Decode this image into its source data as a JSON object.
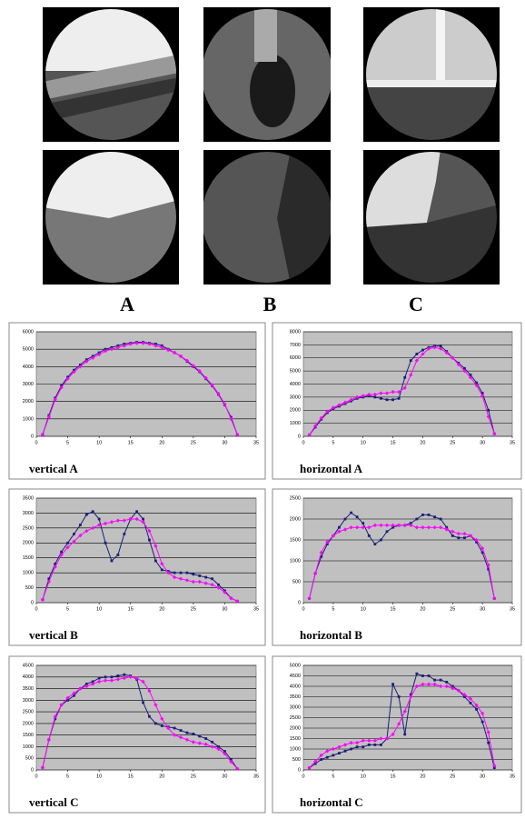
{
  "images": {
    "labels": [
      "A",
      "B",
      "C"
    ]
  },
  "chart_data": [
    {
      "type": "line",
      "title": "vertical A",
      "x": [
        1,
        2,
        3,
        4,
        5,
        6,
        7,
        8,
        9,
        10,
        11,
        12,
        13,
        14,
        15,
        16,
        17,
        18,
        19,
        20,
        21,
        22,
        23,
        24,
        25,
        26,
        27,
        28,
        29,
        30,
        31,
        32
      ],
      "series": [
        {
          "color": "#1c1c78",
          "values": [
            100,
            1200,
            2200,
            2900,
            3400,
            3800,
            4100,
            4400,
            4600,
            4800,
            5000,
            5100,
            5200,
            5300,
            5350,
            5400,
            5400,
            5350,
            5300,
            5200,
            5000,
            4800,
            4600,
            4300,
            4000,
            3700,
            3300,
            2900,
            2400,
            1800,
            1100,
            100
          ]
        },
        {
          "color": "#ff00ff",
          "values": [
            100,
            1100,
            2100,
            2800,
            3300,
            3700,
            4000,
            4300,
            4500,
            4700,
            4900,
            5000,
            5100,
            5200,
            5300,
            5350,
            5350,
            5300,
            5200,
            5100,
            4950,
            4800,
            4600,
            4350,
            4050,
            3750,
            3350,
            2950,
            2450,
            1850,
            1000,
            100
          ]
        }
      ],
      "xlim": [
        0,
        35
      ],
      "xticks": [
        0,
        5,
        10,
        15,
        20,
        25,
        30,
        35
      ],
      "ylim": [
        0,
        6000
      ],
      "yticks": [
        0,
        1000,
        2000,
        3000,
        4000,
        5000,
        6000
      ],
      "grid": true
    },
    {
      "type": "line",
      "title": "horizontal A",
      "x": [
        1,
        2,
        3,
        4,
        5,
        6,
        7,
        8,
        9,
        10,
        11,
        12,
        13,
        14,
        15,
        16,
        17,
        18,
        19,
        20,
        21,
        22,
        23,
        24,
        25,
        26,
        27,
        28,
        29,
        30,
        31,
        32
      ],
      "series": [
        {
          "color": "#1c1c78",
          "values": [
            100,
            700,
            1300,
            1800,
            2100,
            2300,
            2500,
            2700,
            2900,
            3000,
            3100,
            3000,
            2900,
            2800,
            2800,
            2900,
            4500,
            5800,
            6300,
            6600,
            6800,
            6900,
            6900,
            6500,
            6000,
            5600,
            5200,
            4700,
            4100,
            3300,
            2000,
            200
          ]
        },
        {
          "color": "#ff00ff",
          "values": [
            100,
            800,
            1400,
            1900,
            2200,
            2400,
            2600,
            2800,
            3000,
            3100,
            3200,
            3200,
            3300,
            3300,
            3400,
            3400,
            3700,
            4700,
            5800,
            6300,
            6700,
            6800,
            6700,
            6400,
            6000,
            5500,
            5000,
            4500,
            3900,
            3100,
            1500,
            200
          ]
        }
      ],
      "xlim": [
        0,
        35
      ],
      "xticks": [
        0,
        5,
        10,
        15,
        20,
        25,
        30,
        35
      ],
      "ylim": [
        0,
        8000
      ],
      "yticks": [
        0,
        1000,
        2000,
        3000,
        4000,
        5000,
        6000,
        7000,
        8000
      ],
      "grid": true
    },
    {
      "type": "line",
      "title": "vertical B",
      "x": [
        1,
        2,
        3,
        4,
        5,
        6,
        7,
        8,
        9,
        10,
        11,
        12,
        13,
        14,
        15,
        16,
        17,
        18,
        19,
        20,
        21,
        22,
        23,
        24,
        25,
        26,
        27,
        28,
        29,
        30,
        31,
        32
      ],
      "series": [
        {
          "color": "#1c1c78",
          "values": [
            100,
            800,
            1300,
            1700,
            2000,
            2300,
            2600,
            2950,
            3050,
            2800,
            2000,
            1400,
            1600,
            2300,
            2800,
            3050,
            2800,
            2100,
            1400,
            1100,
            1050,
            1000,
            1000,
            1000,
            950,
            900,
            850,
            800,
            600,
            400,
            150,
            50
          ]
        },
        {
          "color": "#ff00ff",
          "values": [
            100,
            700,
            1200,
            1600,
            1850,
            2050,
            2250,
            2400,
            2500,
            2600,
            2650,
            2700,
            2750,
            2750,
            2800,
            2800,
            2700,
            2400,
            1900,
            1300,
            1000,
            850,
            800,
            750,
            700,
            700,
            650,
            600,
            500,
            350,
            150,
            50
          ]
        }
      ],
      "xlim": [
        0,
        35
      ],
      "xticks": [
        0,
        5,
        10,
        15,
        20,
        25,
        30,
        35
      ],
      "ylim": [
        0,
        3500
      ],
      "yticks": [
        0,
        500,
        1000,
        1500,
        2000,
        2500,
        3000,
        3500
      ],
      "grid": true
    },
    {
      "type": "line",
      "title": "horizontal B",
      "x": [
        1,
        2,
        3,
        4,
        5,
        6,
        7,
        8,
        9,
        10,
        11,
        12,
        13,
        14,
        15,
        16,
        17,
        18,
        19,
        20,
        21,
        22,
        23,
        24,
        25,
        26,
        27,
        28,
        29,
        30,
        31,
        32
      ],
      "series": [
        {
          "color": "#1c1c78",
          "values": [
            100,
            700,
            1100,
            1400,
            1600,
            1800,
            2000,
            2150,
            2050,
            1900,
            1600,
            1400,
            1500,
            1700,
            1800,
            1850,
            1850,
            1900,
            2000,
            2100,
            2100,
            2050,
            2000,
            1800,
            1600,
            1550,
            1550,
            1600,
            1450,
            1200,
            800,
            100
          ]
        },
        {
          "color": "#ff00ff",
          "values": [
            100,
            700,
            1200,
            1450,
            1600,
            1700,
            1750,
            1800,
            1800,
            1800,
            1800,
            1850,
            1850,
            1850,
            1850,
            1850,
            1850,
            1850,
            1800,
            1800,
            1800,
            1800,
            1800,
            1750,
            1700,
            1650,
            1650,
            1600,
            1500,
            1300,
            900,
            100
          ]
        }
      ],
      "xlim": [
        0,
        35
      ],
      "xticks": [
        0,
        5,
        10,
        15,
        20,
        25,
        30,
        35
      ],
      "ylim": [
        0,
        2500
      ],
      "yticks": [
        0,
        500,
        1000,
        1500,
        2000,
        2500
      ],
      "grid": true
    },
    {
      "type": "line",
      "title": "vertical C",
      "x": [
        1,
        2,
        3,
        4,
        5,
        6,
        7,
        8,
        9,
        10,
        11,
        12,
        13,
        14,
        15,
        16,
        17,
        18,
        19,
        20,
        21,
        22,
        23,
        24,
        25,
        26,
        27,
        28,
        29,
        30,
        31,
        32
      ],
      "series": [
        {
          "color": "#1c1c78",
          "values": [
            100,
            1300,
            2200,
            2800,
            3000,
            3200,
            3500,
            3700,
            3800,
            3950,
            4000,
            4000,
            4050,
            4100,
            4050,
            3900,
            2900,
            2300,
            2000,
            1900,
            1850,
            1800,
            1700,
            1600,
            1550,
            1450,
            1350,
            1200,
            1000,
            800,
            450,
            50
          ]
        },
        {
          "color": "#ff00ff",
          "values": [
            100,
            1300,
            2300,
            2800,
            3100,
            3300,
            3500,
            3600,
            3700,
            3800,
            3850,
            3850,
            3900,
            3950,
            4000,
            3950,
            3800,
            3400,
            2800,
            2200,
            1800,
            1500,
            1400,
            1300,
            1200,
            1150,
            1100,
            1000,
            900,
            700,
            350,
            50
          ]
        }
      ],
      "xlim": [
        0,
        35
      ],
      "xticks": [
        0,
        5,
        10,
        15,
        20,
        25,
        30,
        35
      ],
      "ylim": [
        0,
        4500
      ],
      "yticks": [
        0,
        500,
        1000,
        1500,
        2000,
        2500,
        3000,
        3500,
        4000,
        4500
      ],
      "grid": true
    },
    {
      "type": "line",
      "title": "horizontal C",
      "x": [
        1,
        2,
        3,
        4,
        5,
        6,
        7,
        8,
        9,
        10,
        11,
        12,
        13,
        14,
        15,
        16,
        17,
        18,
        19,
        20,
        21,
        22,
        23,
        24,
        25,
        26,
        27,
        28,
        29,
        30,
        31,
        32
      ],
      "series": [
        {
          "color": "#1c1c78",
          "values": [
            100,
            300,
            500,
            600,
            700,
            800,
            900,
            1000,
            1100,
            1100,
            1200,
            1200,
            1200,
            1500,
            4100,
            3500,
            1700,
            3600,
            4600,
            4500,
            4500,
            4300,
            4300,
            4200,
            4000,
            3800,
            3500,
            3200,
            2900,
            2300,
            1300,
            100
          ]
        },
        {
          "color": "#ff00ff",
          "values": [
            100,
            400,
            700,
            900,
            1000,
            1100,
            1200,
            1300,
            1300,
            1400,
            1400,
            1400,
            1500,
            1500,
            1700,
            2200,
            2800,
            3500,
            4000,
            4100,
            4100,
            4100,
            4000,
            4000,
            3900,
            3800,
            3600,
            3400,
            3100,
            2700,
            1800,
            200
          ]
        }
      ],
      "xlim": [
        0,
        35
      ],
      "xticks": [
        0,
        5,
        10,
        15,
        20,
        25,
        30,
        35
      ],
      "ylim": [
        0,
        5000
      ],
      "yticks": [
        0,
        500,
        1000,
        1500,
        2000,
        2500,
        3000,
        3500,
        4000,
        4500,
        5000
      ],
      "grid": true
    }
  ]
}
